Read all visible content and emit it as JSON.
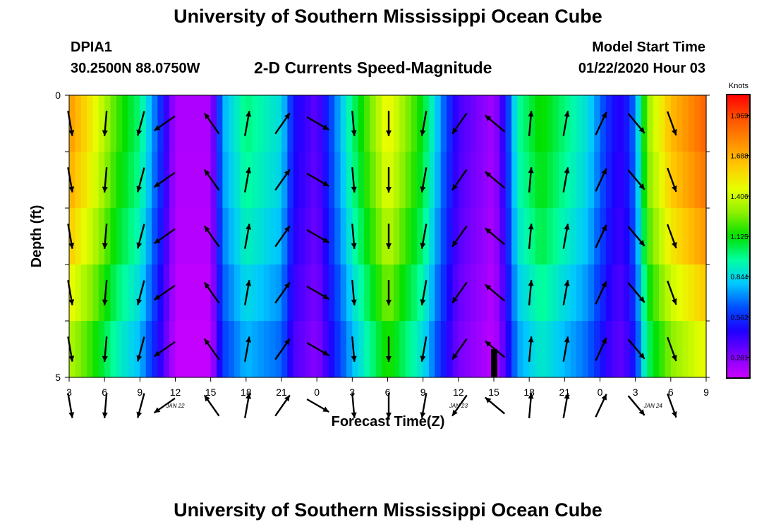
{
  "header": {
    "title": "University of Southern Mississippi Ocean Cube",
    "station": "DPIA1",
    "coordinates": "30.2500N 88.0750W",
    "chart_title": "2-D Currents Speed-Magnitude",
    "model_start_label": "Model Start Time",
    "model_start_value": "01/22/2020 Hour 03"
  },
  "footer": {
    "title": "University of Southern Mississippi Ocean Cube"
  },
  "colors": {
    "palette": [
      "#cc00ff",
      "#7a00ff",
      "#1e00ff",
      "#0050ff",
      "#00c8ff",
      "#00ffa0",
      "#00e000",
      "#8cf000",
      "#e6ff00",
      "#ffc800",
      "#ff8c00",
      "#ff5000",
      "#ff0000"
    ]
  },
  "chart_data": {
    "type": "heatmap",
    "title": "2-D Currents Speed-Magnitude",
    "xlabel": "Forecast Time(Z)",
    "ylabel": "Depth (ft)",
    "x_tick_labels": [
      "3",
      "6",
      "9",
      "12",
      "15",
      "18",
      "21",
      "0",
      "3",
      "6",
      "9",
      "12",
      "15",
      "18",
      "21",
      "0",
      "3",
      "6",
      "9"
    ],
    "x_hours": [
      3,
      6,
      9,
      12,
      15,
      18,
      21,
      24,
      27,
      30,
      33,
      36,
      39,
      42,
      45,
      48,
      51,
      54,
      57
    ],
    "x_range": [
      3,
      57
    ],
    "date_labels": [
      {
        "hour": 12,
        "text": "JAN 22"
      },
      {
        "hour": 36,
        "text": "JAN 23"
      },
      {
        "hour": 52.5,
        "text": "JAN 24"
      }
    ],
    "y_tick_labels": [
      "0",
      "5"
    ],
    "y_range": [
      0,
      5
    ],
    "depth_levels": 5,
    "colorbar": {
      "label": "Knots",
      "ticks": [
        "1.969",
        "1.688",
        "1.406",
        "1.125",
        "0.844",
        "0.562",
        "0.281"
      ],
      "tick_values": [
        1.969,
        1.688,
        1.406,
        1.125,
        0.844,
        0.562,
        0.281
      ],
      "range": [
        0.14,
        2.11
      ]
    },
    "speed_profile": [
      {
        "hour": 3,
        "speed": 1.75
      },
      {
        "hour": 5,
        "speed": 1.5
      },
      {
        "hour": 7,
        "speed": 1.2
      },
      {
        "hour": 9,
        "speed": 1.0
      },
      {
        "hour": 11,
        "speed": 0.5
      },
      {
        "hour": 12,
        "speed": 0.2
      },
      {
        "hour": 15,
        "speed": 0.2
      },
      {
        "hour": 16,
        "speed": 0.75
      },
      {
        "hour": 18,
        "speed": 1.0
      },
      {
        "hour": 21,
        "speed": 0.85
      },
      {
        "hour": 22,
        "speed": 0.5
      },
      {
        "hour": 24,
        "speed": 0.35
      },
      {
        "hour": 27,
        "speed": 1.0
      },
      {
        "hour": 30,
        "speed": 1.5
      },
      {
        "hour": 33,
        "speed": 1.1
      },
      {
        "hour": 35,
        "speed": 0.6
      },
      {
        "hour": 36,
        "speed": 0.4
      },
      {
        "hour": 39,
        "speed": 0.22
      },
      {
        "hour": 40,
        "speed": 0.5
      },
      {
        "hour": 41,
        "speed": 0.95
      },
      {
        "hour": 43,
        "speed": 1.15
      },
      {
        "hour": 45,
        "speed": 1.0
      },
      {
        "hour": 47,
        "speed": 0.85
      },
      {
        "hour": 49,
        "speed": 0.5
      },
      {
        "hour": 50,
        "speed": 0.45
      },
      {
        "hour": 51,
        "speed": 0.7
      },
      {
        "hour": 52,
        "speed": 1.3
      },
      {
        "hour": 54,
        "speed": 1.65
      },
      {
        "hour": 57,
        "speed": 1.9
      }
    ],
    "depth_factors": [
      1.0,
      0.97,
      0.92,
      0.85,
      0.78
    ],
    "vectors": [
      {
        "hour": 3,
        "deg": 170
      },
      {
        "hour": 6,
        "deg": 185
      },
      {
        "hour": 9,
        "deg": 195
      },
      {
        "hour": 11,
        "deg": 235
      },
      {
        "hour": 15,
        "deg": 325
      },
      {
        "hour": 18,
        "deg": 10
      },
      {
        "hour": 21,
        "deg": 35
      },
      {
        "hour": 24,
        "deg": 120
      },
      {
        "hour": 27,
        "deg": 175
      },
      {
        "hour": 30,
        "deg": 180
      },
      {
        "hour": 33,
        "deg": 190
      },
      {
        "hour": 36,
        "deg": 215
      },
      {
        "hour": 39,
        "deg": 310
      },
      {
        "hour": 42,
        "deg": 5
      },
      {
        "hour": 45,
        "deg": 10
      },
      {
        "hour": 48,
        "deg": 25
      },
      {
        "hour": 51,
        "deg": 140
      },
      {
        "hour": 54,
        "deg": 160
      }
    ]
  }
}
